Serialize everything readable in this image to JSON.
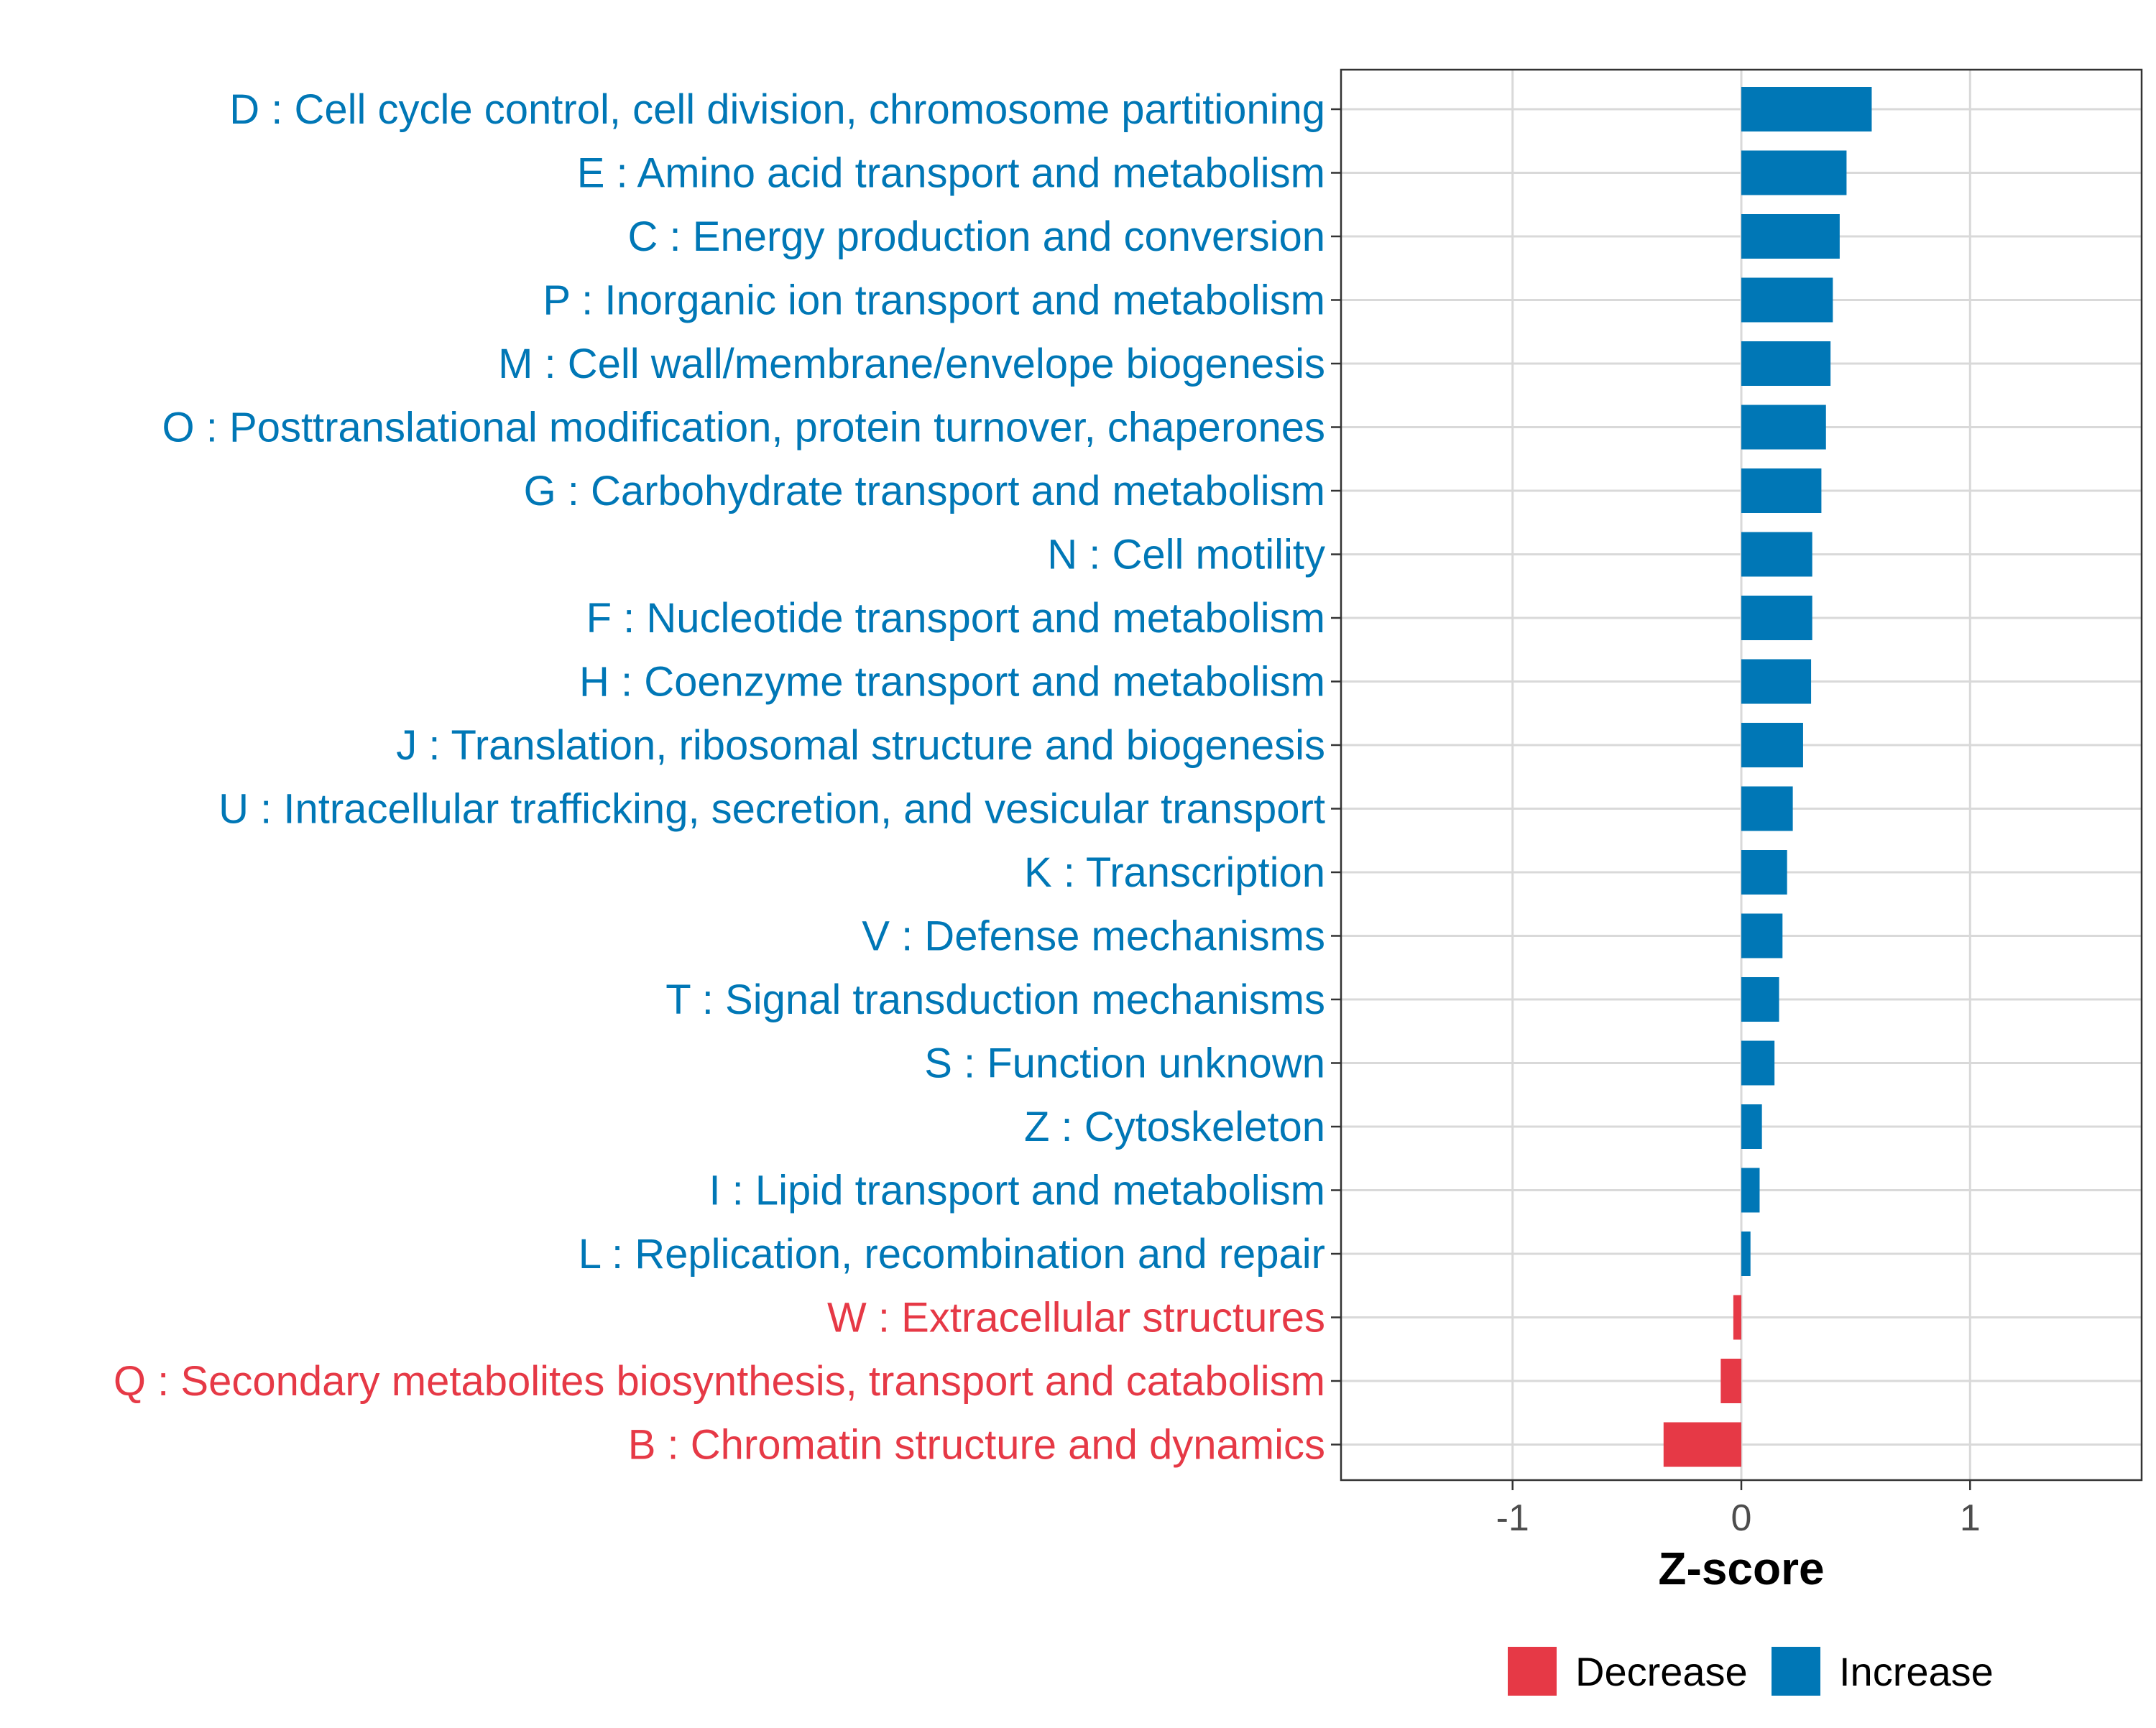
{
  "chart_data": {
    "type": "bar",
    "orientation": "horizontal",
    "xlabel": "Z-score",
    "ylabel": "",
    "xlim": [
      -1.75,
      1.75
    ],
    "xticks": [
      -1,
      0,
      1
    ],
    "xtick_labels": [
      "-1",
      "0",
      "1"
    ],
    "grid": true,
    "colors": {
      "Decrease": "#E63946",
      "Increase": "#0077B6"
    },
    "legend": {
      "position": "bottom",
      "entries": [
        {
          "label": "Decrease",
          "color": "#E63946"
        },
        {
          "label": "Increase",
          "color": "#0077B6"
        }
      ]
    },
    "categories": [
      "D : Cell cycle control, cell division, chromosome partitioning",
      "E : Amino acid transport and metabolism",
      "C : Energy production and conversion",
      "P : Inorganic ion transport and metabolism",
      "M : Cell wall/membrane/envelope biogenesis",
      "O : Posttranslational modification, protein turnover, chaperones",
      "G : Carbohydrate transport and metabolism",
      "N : Cell motility",
      "F : Nucleotide transport and metabolism",
      "H : Coenzyme transport and metabolism",
      "J : Translation, ribosomal structure and biogenesis",
      "U : Intracellular trafficking, secretion, and vesicular transport",
      "K : Transcription",
      "V : Defense mechanisms",
      "T : Signal transduction mechanisms",
      "S : Function unknown",
      "Z : Cytoskeleton",
      "I : Lipid transport and metabolism",
      "L : Replication, recombination and repair",
      "W : Extracellular structures",
      "Q : Secondary metabolites biosynthesis, transport and catabolism",
      "B : Chromatin structure and dynamics"
    ],
    "values": [
      0.57,
      0.46,
      0.43,
      0.4,
      0.39,
      0.37,
      0.35,
      0.31,
      0.31,
      0.305,
      0.27,
      0.225,
      0.2,
      0.18,
      0.165,
      0.145,
      0.09,
      0.08,
      0.04,
      -0.035,
      -0.09,
      -0.34
    ],
    "groups": [
      "Increase",
      "Increase",
      "Increase",
      "Increase",
      "Increase",
      "Increase",
      "Increase",
      "Increase",
      "Increase",
      "Increase",
      "Increase",
      "Increase",
      "Increase",
      "Increase",
      "Increase",
      "Increase",
      "Increase",
      "Increase",
      "Increase",
      "Decrease",
      "Decrease",
      "Decrease"
    ]
  }
}
